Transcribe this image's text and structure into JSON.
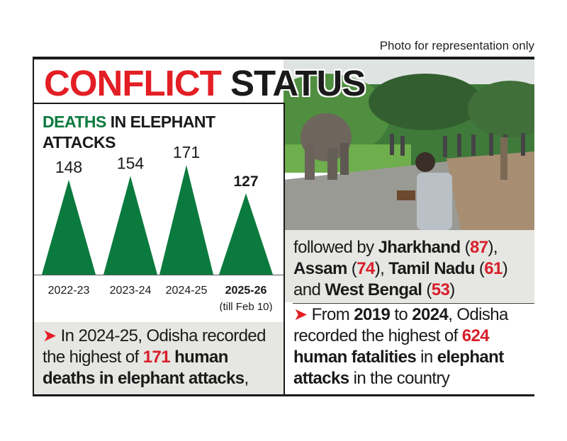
{
  "credit": "Photo for representation only",
  "title": {
    "part1": "CONFLICT",
    "part2": "STATUS"
  },
  "colors": {
    "red": "#e31e24",
    "green": "#0b7a3e",
    "gray_panel": "#e6e6e3"
  },
  "chart_data": {
    "type": "bar",
    "shape": "triangle",
    "title_highlight": "DEATHS",
    "title_rest": "IN ELEPHANT",
    "title_line2": "ATTACKS",
    "categories": [
      "2022-23",
      "2023-24",
      "2024-25",
      "2025-26"
    ],
    "category_note": "(till Feb 10)",
    "values": [
      148,
      154,
      171,
      127
    ],
    "labels": [
      "148",
      "154",
      "171",
      "127"
    ],
    "bold_index": 3,
    "ylim": [
      0,
      180
    ]
  },
  "right_box": {
    "seg": [
      "followed by ",
      "Jharkhand",
      " (",
      "87",
      "),",
      "Assam",
      " (",
      "74",
      "), ",
      "Tamil Nadu",
      " (",
      "61",
      ")",
      "and ",
      "West Bengal",
      " (",
      "53",
      ")"
    ]
  },
  "left_note": {
    "arrow": "➤",
    "seg": [
      " In 2024-25, Odisha recorded",
      "the highest of ",
      "171",
      " human",
      "deaths in elephant attacks",
      ","
    ]
  },
  "right_note": {
    "arrow": "➤",
    "seg": [
      " From ",
      "2019",
      " to ",
      "2024",
      ", Odisha",
      "recorded the highest of ",
      "624",
      "human fatalities",
      " in ",
      "elephant",
      "attacks",
      " in the country"
    ]
  }
}
